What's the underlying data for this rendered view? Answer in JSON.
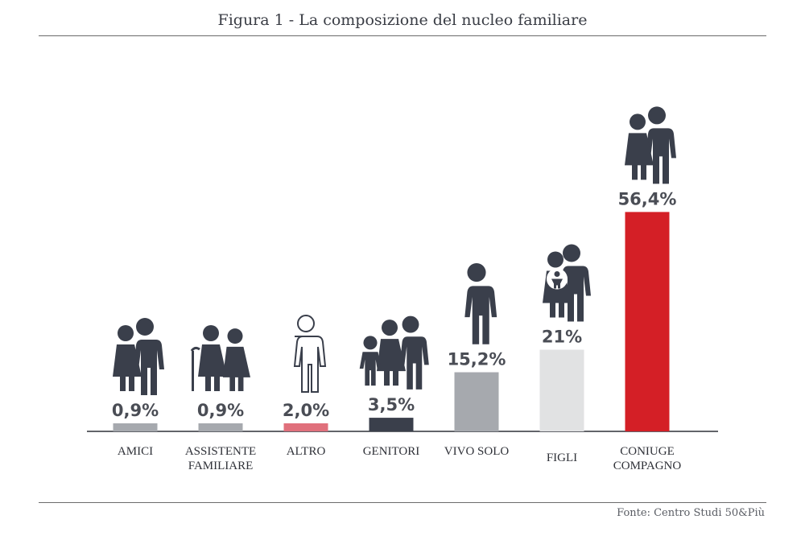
{
  "title": "Figura 1 - La composizione del nucleo familiare",
  "source": "Fonte: Centro Studi 50&Più",
  "chart_data": {
    "type": "bar",
    "categories": [
      [
        "AMICI"
      ],
      [
        "ASSISTENTE",
        "FAMILIARE"
      ],
      [
        "ALTRO"
      ],
      [
        "GENITORI"
      ],
      [
        "VIVO SOLO"
      ],
      [
        "FIGLI"
      ],
      [
        "CONIUGE",
        "COMPAGNO"
      ]
    ],
    "values": [
      0.9,
      0.9,
      2.0,
      3.5,
      15.2,
      21,
      56.4
    ],
    "value_labels": [
      "0,9%",
      "0,9%",
      "2,0%",
      "3,5%",
      "15,2%",
      "21%",
      "56,4%"
    ],
    "colors": [
      "#a6a9ae",
      "#a6a9ae",
      "#e0707c",
      "#3a3f4b",
      "#a6a9ae",
      "#e1e2e3",
      "#d41f26"
    ],
    "icons": [
      "couple-icon",
      "elder-with-caregiver-icon",
      "person-outline-icon",
      "family-with-child-icon",
      "single-person-icon",
      "parents-with-baby-icon",
      "couple-icon"
    ],
    "ylim": [
      0,
      60
    ],
    "grid": false
  }
}
